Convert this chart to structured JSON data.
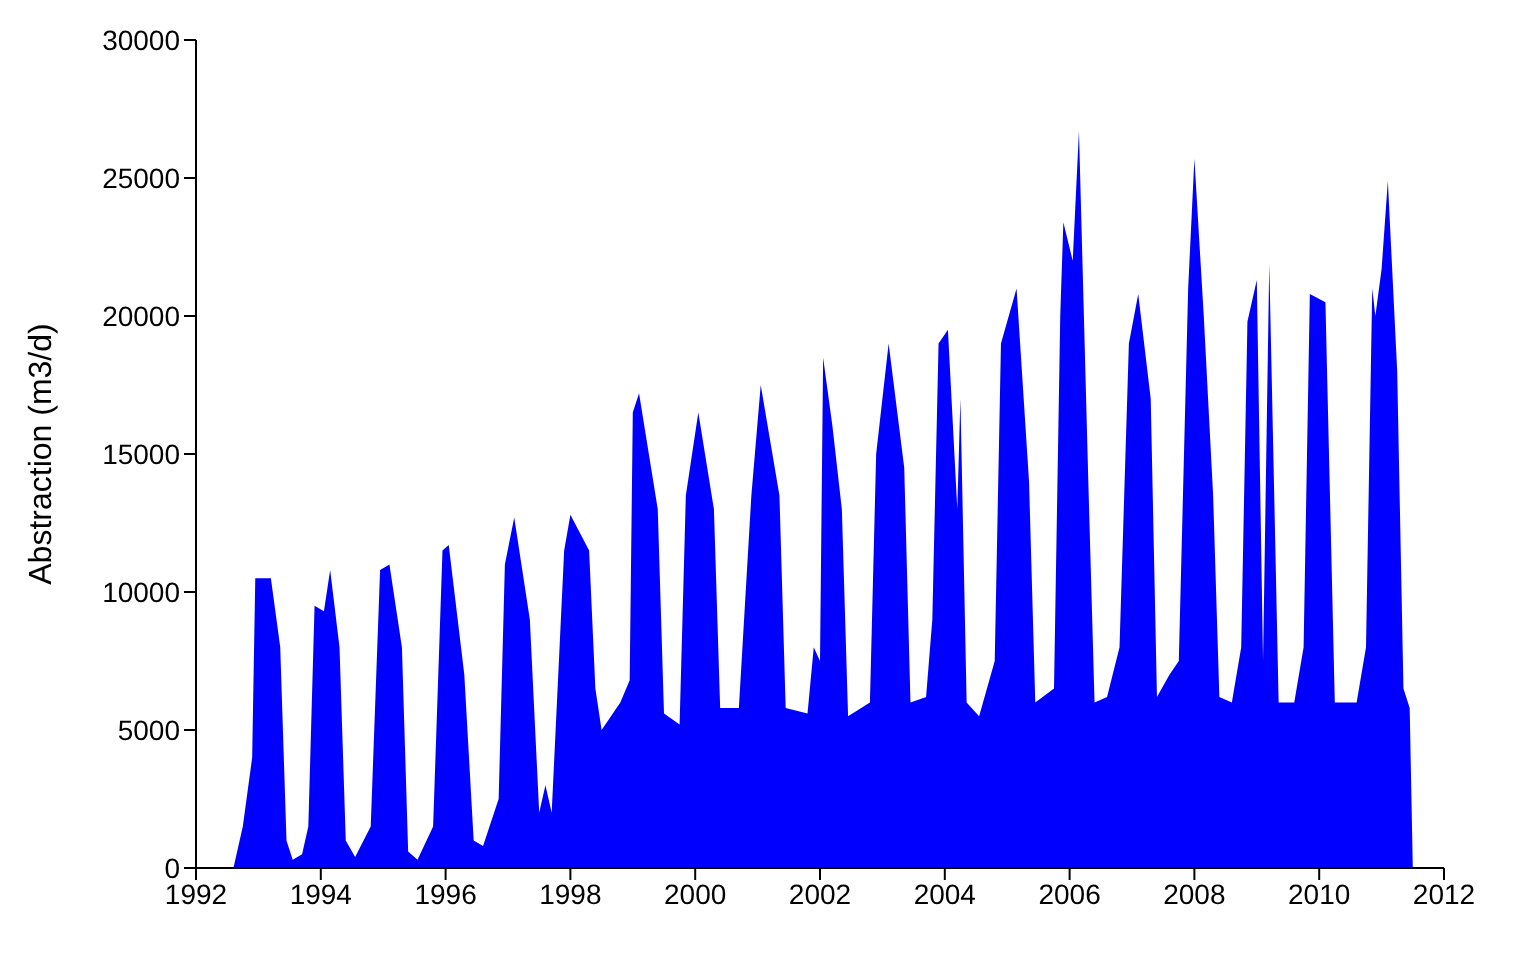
{
  "chart_data": {
    "type": "area",
    "ylabel": "Abstraction (m3/d)",
    "color": "#0000ff",
    "xlim": [
      1992,
      2012
    ],
    "xticks": [
      1992,
      1994,
      1996,
      1998,
      2000,
      2002,
      2004,
      2006,
      2008,
      2010,
      2012
    ],
    "ylim": [
      0,
      30000
    ],
    "yticks": [
      0,
      5000,
      10000,
      15000,
      20000,
      25000,
      30000
    ],
    "grid": false,
    "legend": false,
    "x": [
      1992.6,
      1992.75,
      1992.9,
      1992.95,
      1993.2,
      1993.35,
      1993.45,
      1993.55,
      1993.7,
      1993.8,
      1993.9,
      1994.05,
      1994.15,
      1994.3,
      1994.4,
      1994.55,
      1994.8,
      1994.95,
      1995.1,
      1995.3,
      1995.4,
      1995.55,
      1995.8,
      1995.95,
      1996.05,
      1996.3,
      1996.45,
      1996.6,
      1996.85,
      1996.95,
      1997.1,
      1997.35,
      1997.5,
      1997.6,
      1997.7,
      1997.9,
      1998.0,
      1998.3,
      1998.4,
      1998.5,
      1998.8,
      1998.95,
      1999.0,
      1999.1,
      1999.4,
      1999.5,
      1999.75,
      1999.85,
      2000.05,
      2000.3,
      2000.4,
      2000.7,
      2000.9,
      2001.05,
      2001.35,
      2001.45,
      2001.8,
      2001.9,
      2002.0,
      2002.05,
      2002.2,
      2002.35,
      2002.45,
      2002.8,
      2002.9,
      2003.1,
      2003.35,
      2003.45,
      2003.7,
      2003.8,
      2003.9,
      2004.05,
      2004.2,
      2004.25,
      2004.35,
      2004.55,
      2004.8,
      2004.9,
      2005.15,
      2005.35,
      2005.45,
      2005.75,
      2005.85,
      2005.9,
      2006.05,
      2006.15,
      2006.3,
      2006.4,
      2006.6,
      2006.8,
      2006.95,
      2007.1,
      2007.3,
      2007.4,
      2007.6,
      2007.75,
      2007.9,
      2008.0,
      2008.15,
      2008.3,
      2008.4,
      2008.6,
      2008.75,
      2008.85,
      2009.0,
      2009.1,
      2009.2,
      2009.35,
      2009.6,
      2009.75,
      2009.85,
      2010.1,
      2010.25,
      2010.6,
      2010.75,
      2010.85,
      2010.9,
      2011.0,
      2011.1,
      2011.25,
      2011.35,
      2011.45,
      2011.5
    ],
    "values": [
      0,
      1500,
      4000,
      10500,
      10500,
      8000,
      1000,
      300,
      500,
      1500,
      9500,
      9300,
      10800,
      8000,
      1000,
      400,
      1500,
      10800,
      11000,
      8000,
      600,
      300,
      1500,
      11500,
      11700,
      7000,
      1000,
      800,
      2500,
      11000,
      12700,
      9000,
      2000,
      3000,
      2000,
      11500,
      12800,
      11500,
      6500,
      5000,
      6000,
      6800,
      16500,
      17200,
      13000,
      5600,
      5200,
      13500,
      16500,
      13000,
      5800,
      5800,
      13500,
      17500,
      13500,
      5800,
      5600,
      8000,
      7500,
      18500,
      16000,
      13000,
      5500,
      6000,
      15000,
      19000,
      14500,
      6000,
      6200,
      9000,
      19000,
      19500,
      13000,
      17000,
      6000,
      5500,
      7500,
      19000,
      21000,
      14000,
      6000,
      6500,
      20000,
      23400,
      22000,
      26700,
      14000,
      6000,
      6200,
      8000,
      19000,
      20800,
      17000,
      6200,
      7000,
      7500,
      21000,
      25700,
      20000,
      13500,
      6200,
      6000,
      8000,
      19800,
      21300,
      7500,
      21900,
      6000,
      6000,
      8000,
      20800,
      20500,
      6000,
      6000,
      8000,
      21000,
      20000,
      21700,
      24900,
      18000,
      6500,
      5800,
      0
    ]
  }
}
